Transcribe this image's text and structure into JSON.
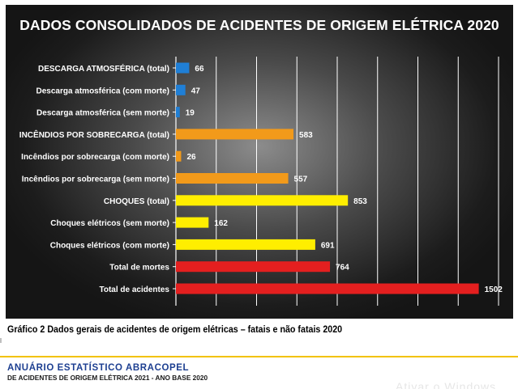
{
  "chart_data": {
    "type": "bar",
    "orientation": "horizontal",
    "title": "DADOS CONSOLIDADOS DE ACIDENTES DE ORIGEM ELÉTRICA 2020",
    "xlim": [
      0,
      1600
    ],
    "grid": true,
    "categories": [
      "DESCARGA ATMOSFÉRICA (total)",
      "Descarga atmosférica (com morte)",
      "Descarga atmosférica (sem morte)",
      "INCÊNDIOS POR SOBRECARGA (total)",
      "Incêndios por sobrecarga (com morte)",
      "Incêndios por sobrecarga (sem morte)",
      "CHOQUES (total)",
      "Choques elétricos (sem morte)",
      "Choques elétricos (com morte)",
      "Total de mortes",
      "Total de acidentes"
    ],
    "values": [
      66,
      47,
      19,
      583,
      26,
      557,
      853,
      162,
      691,
      764,
      1502
    ],
    "colors": [
      "#1f7fd6",
      "#1f7fd6",
      "#1f7fd6",
      "#f29a1a",
      "#f29a1a",
      "#f29a1a",
      "#ffee00",
      "#ffee00",
      "#ffee00",
      "#e41f1f",
      "#e41f1f"
    ]
  },
  "caption": "Gráfico 2 Dados gerais de acidentes de origem  elétricas – fatais e não fatais 2020",
  "footer": {
    "title": "ANUÁRIO ESTATÍSTICO ABRACOPEL",
    "subtitle": "DE ACIDENTES DE ORIGEM ELÉTRICA 2021 - ANO BASE 2020",
    "watermark": "Ativar o Windows"
  }
}
